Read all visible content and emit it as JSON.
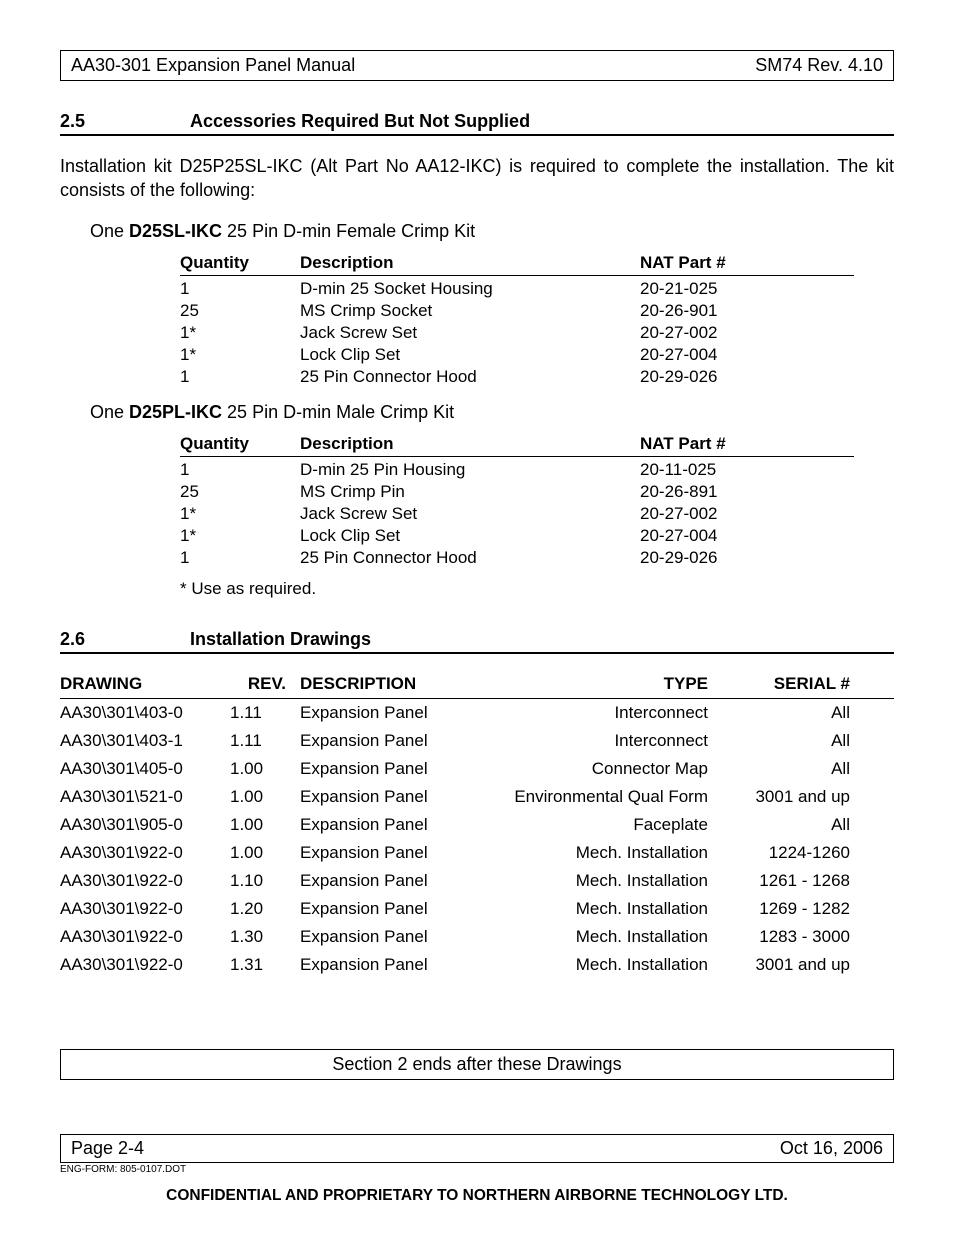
{
  "header": {
    "left": "AA30-301 Expansion Panel Manual",
    "right": "SM74 Rev. 4.10"
  },
  "section25": {
    "num": "2.5",
    "title": "Accessories Required But Not Supplied",
    "para": "Installation kit D25P25SL-IKC (Alt Part No AA12-IKC) is required to complete the installation.  The kit consists of the following:"
  },
  "kit1": {
    "prefix": "One ",
    "bold": "D25SL-IKC",
    "suffix": " 25 Pin D-min Female Crimp Kit",
    "headers": {
      "qty": "Quantity",
      "desc": "Description",
      "part": "NAT Part #"
    },
    "rows": [
      {
        "qty": "1",
        "desc": "D-min 25 Socket Housing",
        "part": "20-21-025"
      },
      {
        "qty": "25",
        "desc": "MS Crimp Socket",
        "part": "20-26-901"
      },
      {
        "qty": "1*",
        "desc": "Jack Screw Set",
        "part": "20-27-002"
      },
      {
        "qty": "1*",
        "desc": "Lock Clip Set",
        "part": "20-27-004"
      },
      {
        "qty": "1",
        "desc": "25 Pin Connector Hood",
        "part": "20-29-026"
      }
    ]
  },
  "kit2": {
    "prefix": "One ",
    "bold": "D25PL-IKC",
    "suffix": " 25 Pin D-min Male Crimp Kit",
    "headers": {
      "qty": "Quantity",
      "desc": "Description",
      "part": "NAT Part #"
    },
    "rows": [
      {
        "qty": "1",
        "desc": "D-min 25 Pin Housing",
        "part": "20-11-025"
      },
      {
        "qty": "25",
        "desc": "MS Crimp Pin",
        "part": "20-26-891"
      },
      {
        "qty": "1*",
        "desc": "Jack Screw Set",
        "part": "20-27-002"
      },
      {
        "qty": "1*",
        "desc": "Lock Clip Set",
        "part": "20-27-004"
      },
      {
        "qty": "1",
        "desc": "25 Pin Connector Hood",
        "part": "20-29-026"
      }
    ]
  },
  "footnote": "*  Use as required.",
  "section26": {
    "num": "2.6",
    "title": "Installation Drawings"
  },
  "drawings": {
    "headers": {
      "drawing": "DRAWING",
      "rev": "REV.",
      "desc": "DESCRIPTION",
      "type": "TYPE",
      "serial": "SERIAL #"
    },
    "rows": [
      {
        "drawing": "AA30\\301\\403-0",
        "rev": "1.11",
        "desc": "Expansion Panel",
        "type": "Interconnect",
        "serial": "All"
      },
      {
        "drawing": "AA30\\301\\403-1",
        "rev": "1.11",
        "desc": "Expansion Panel",
        "type": "Interconnect",
        "serial": "All"
      },
      {
        "drawing": "AA30\\301\\405-0",
        "rev": "1.00",
        "desc": "Expansion Panel",
        "type": "Connector Map",
        "serial": "All"
      },
      {
        "drawing": "AA30\\301\\521-0",
        "rev": "1.00",
        "desc": "Expansion Panel",
        "type": "Environmental Qual Form",
        "serial": "3001 and up"
      },
      {
        "drawing": "AA30\\301\\905-0",
        "rev": "1.00",
        "desc": "Expansion Panel",
        "type": "Faceplate",
        "serial": "All"
      },
      {
        "drawing": "AA30\\301\\922-0",
        "rev": "1.00",
        "desc": "Expansion Panel",
        "type": "Mech. Installation",
        "serial": "1224-1260"
      },
      {
        "drawing": "AA30\\301\\922-0",
        "rev": "1.10",
        "desc": "Expansion Panel",
        "type": "Mech. Installation",
        "serial": "1261 - 1268"
      },
      {
        "drawing": "AA30\\301\\922-0",
        "rev": "1.20",
        "desc": "Expansion Panel",
        "type": "Mech. Installation",
        "serial": "1269 - 1282"
      },
      {
        "drawing": "AA30\\301\\922-0",
        "rev": "1.30",
        "desc": "Expansion Panel",
        "type": "Mech. Installation",
        "serial": "1283 - 3000"
      },
      {
        "drawing": "AA30\\301\\922-0",
        "rev": "1.31",
        "desc": "Expansion Panel",
        "type": "Mech. Installation",
        "serial": "3001 and up"
      }
    ]
  },
  "endbox": "Section 2 ends after these Drawings",
  "footer": {
    "left": "Page 2-4",
    "right": "Oct 16, 2006",
    "engform": "ENG-FORM: 805-0107.DOT",
    "confidential": "CONFIDENTIAL AND PROPRIETARY TO NORTHERN AIRBORNE TECHNOLOGY LTD."
  }
}
